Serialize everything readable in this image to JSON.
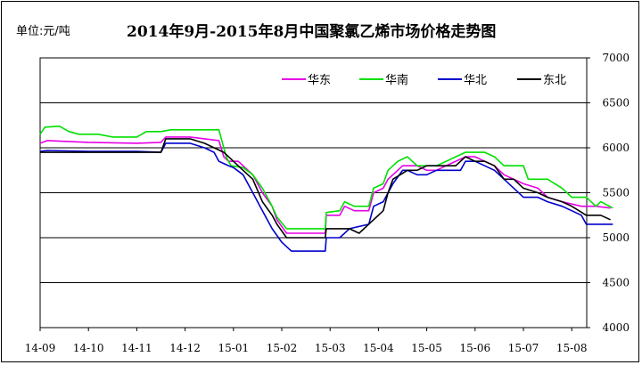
{
  "header": {
    "unit_label": "单位:元/吨",
    "title": "2014年9月-2015年8月中国聚氯乙烯市场价格走势图"
  },
  "chart_data": {
    "type": "line",
    "title": "2014年9月-2015年8月中国聚氯乙烯市场价格走势图",
    "xlabel": "",
    "ylabel": "单位:元/吨",
    "ylim": [
      4000,
      7000
    ],
    "y_ticks": [
      "4000",
      "4500",
      "5000",
      "5500",
      "6000",
      "6500",
      "7000"
    ],
    "x_ticks": [
      "14-09",
      "14-10",
      "14-11",
      "14-12",
      "15-01",
      "15-02",
      "15-03",
      "15-04",
      "15-05",
      "15-06",
      "15-07",
      "15-08"
    ],
    "grid": "horizontal",
    "legend_position": "top-right",
    "series": [
      {
        "name": "华东",
        "color": "#e600e6",
        "points": [
          [
            0,
            6050
          ],
          [
            0.15,
            6080
          ],
          [
            1.0,
            6060
          ],
          [
            2.0,
            6050
          ],
          [
            2.5,
            6060
          ],
          [
            2.6,
            6120
          ],
          [
            3.1,
            6120
          ],
          [
            3.4,
            6100
          ],
          [
            3.7,
            6080
          ],
          [
            3.8,
            5900
          ],
          [
            3.9,
            5850
          ],
          [
            4.1,
            5850
          ],
          [
            4.2,
            5800
          ],
          [
            4.4,
            5700
          ],
          [
            4.6,
            5500
          ],
          [
            4.8,
            5350
          ],
          [
            4.9,
            5200
          ],
          [
            5.1,
            5050
          ],
          [
            5.6,
            5050
          ],
          [
            5.9,
            5050
          ],
          [
            5.92,
            5250
          ],
          [
            6.2,
            5250
          ],
          [
            6.3,
            5350
          ],
          [
            6.5,
            5300
          ],
          [
            6.8,
            5300
          ],
          [
            6.9,
            5500
          ],
          [
            7.1,
            5550
          ],
          [
            7.2,
            5650
          ],
          [
            7.4,
            5750
          ],
          [
            7.5,
            5800
          ],
          [
            7.8,
            5800
          ],
          [
            8.0,
            5750
          ],
          [
            8.2,
            5750
          ],
          [
            8.4,
            5800
          ],
          [
            8.6,
            5850
          ],
          [
            8.8,
            5900
          ],
          [
            9.0,
            5900
          ],
          [
            9.2,
            5850
          ],
          [
            9.4,
            5800
          ],
          [
            9.6,
            5700
          ],
          [
            9.8,
            5650
          ],
          [
            10.0,
            5600
          ],
          [
            10.3,
            5550
          ],
          [
            10.5,
            5450
          ],
          [
            10.8,
            5400
          ],
          [
            11.2,
            5350
          ],
          [
            11.5,
            5350
          ],
          [
            11.8,
            5330
          ]
        ]
      },
      {
        "name": "华南",
        "color": "#00e000",
        "points": [
          [
            0,
            6150
          ],
          [
            0.1,
            6230
          ],
          [
            0.4,
            6240
          ],
          [
            0.6,
            6180
          ],
          [
            0.8,
            6150
          ],
          [
            1.2,
            6150
          ],
          [
            1.5,
            6120
          ],
          [
            2.0,
            6120
          ],
          [
            2.2,
            6180
          ],
          [
            2.5,
            6180
          ],
          [
            2.7,
            6200
          ],
          [
            3.4,
            6200
          ],
          [
            3.7,
            6200
          ],
          [
            3.85,
            5900
          ],
          [
            3.95,
            5800
          ],
          [
            4.2,
            5780
          ],
          [
            4.4,
            5700
          ],
          [
            4.6,
            5550
          ],
          [
            4.8,
            5350
          ],
          [
            4.9,
            5230
          ],
          [
            5.1,
            5100
          ],
          [
            5.6,
            5100
          ],
          [
            5.9,
            5100
          ],
          [
            5.92,
            5280
          ],
          [
            6.2,
            5300
          ],
          [
            6.3,
            5400
          ],
          [
            6.5,
            5350
          ],
          [
            6.8,
            5350
          ],
          [
            6.9,
            5550
          ],
          [
            7.1,
            5600
          ],
          [
            7.2,
            5750
          ],
          [
            7.4,
            5850
          ],
          [
            7.6,
            5900
          ],
          [
            7.8,
            5800
          ],
          [
            8.0,
            5800
          ],
          [
            8.2,
            5800
          ],
          [
            8.4,
            5850
          ],
          [
            8.6,
            5900
          ],
          [
            8.8,
            5950
          ],
          [
            9.2,
            5950
          ],
          [
            9.4,
            5900
          ],
          [
            9.6,
            5800
          ],
          [
            9.8,
            5800
          ],
          [
            10.0,
            5800
          ],
          [
            10.1,
            5650
          ],
          [
            10.5,
            5650
          ],
          [
            10.8,
            5550
          ],
          [
            11.0,
            5450
          ],
          [
            11.3,
            5450
          ],
          [
            11.5,
            5350
          ],
          [
            11.6,
            5400
          ],
          [
            11.85,
            5330
          ]
        ]
      },
      {
        "name": "华北",
        "color": "#0000cc",
        "points": [
          [
            0,
            5960
          ],
          [
            0.15,
            5970
          ],
          [
            1.0,
            5960
          ],
          [
            2.0,
            5960
          ],
          [
            2.5,
            5950
          ],
          [
            2.6,
            6050
          ],
          [
            3.1,
            6050
          ],
          [
            3.4,
            6000
          ],
          [
            3.6,
            5950
          ],
          [
            3.7,
            5850
          ],
          [
            3.9,
            5800
          ],
          [
            4.0,
            5780
          ],
          [
            4.2,
            5700
          ],
          [
            4.4,
            5500
          ],
          [
            4.6,
            5300
          ],
          [
            4.8,
            5100
          ],
          [
            5.0,
            4950
          ],
          [
            5.2,
            4850
          ],
          [
            5.5,
            4850
          ],
          [
            5.8,
            4850
          ],
          [
            5.9,
            4850
          ],
          [
            5.92,
            5000
          ],
          [
            6.2,
            5000
          ],
          [
            6.4,
            5100
          ],
          [
            6.8,
            5150
          ],
          [
            6.9,
            5350
          ],
          [
            7.1,
            5400
          ],
          [
            7.3,
            5600
          ],
          [
            7.5,
            5750
          ],
          [
            7.6,
            5750
          ],
          [
            7.8,
            5700
          ],
          [
            8.0,
            5700
          ],
          [
            8.2,
            5750
          ],
          [
            8.5,
            5750
          ],
          [
            8.7,
            5750
          ],
          [
            8.8,
            5850
          ],
          [
            9.0,
            5850
          ],
          [
            9.2,
            5800
          ],
          [
            9.4,
            5750
          ],
          [
            9.6,
            5650
          ],
          [
            9.8,
            5550
          ],
          [
            10.0,
            5450
          ],
          [
            10.3,
            5450
          ],
          [
            10.5,
            5400
          ],
          [
            10.8,
            5350
          ],
          [
            11.0,
            5300
          ],
          [
            11.2,
            5250
          ],
          [
            11.3,
            5150
          ],
          [
            11.6,
            5150
          ],
          [
            11.85,
            5150
          ]
        ]
      },
      {
        "name": "东北",
        "color": "#000000",
        "points": [
          [
            0,
            5950
          ],
          [
            0.15,
            5950
          ],
          [
            1.0,
            5950
          ],
          [
            2.0,
            5950
          ],
          [
            2.5,
            5950
          ],
          [
            2.6,
            6100
          ],
          [
            3.1,
            6100
          ],
          [
            3.4,
            6050
          ],
          [
            3.6,
            6000
          ],
          [
            3.8,
            5950
          ],
          [
            3.9,
            5900
          ],
          [
            4.0,
            5850
          ],
          [
            4.2,
            5750
          ],
          [
            4.4,
            5650
          ],
          [
            4.6,
            5400
          ],
          [
            4.8,
            5250
          ],
          [
            4.9,
            5150
          ],
          [
            5.1,
            5000
          ],
          [
            5.6,
            5000
          ],
          [
            5.9,
            5000
          ],
          [
            5.92,
            5100
          ],
          [
            6.4,
            5100
          ],
          [
            6.6,
            5050
          ],
          [
            6.9,
            5200
          ],
          [
            7.1,
            5300
          ],
          [
            7.2,
            5500
          ],
          [
            7.3,
            5650
          ],
          [
            7.6,
            5750
          ],
          [
            7.8,
            5750
          ],
          [
            8.0,
            5800
          ],
          [
            8.4,
            5800
          ],
          [
            8.6,
            5800
          ],
          [
            8.8,
            5900
          ],
          [
            9.0,
            5850
          ],
          [
            9.2,
            5850
          ],
          [
            9.4,
            5800
          ],
          [
            9.6,
            5650
          ],
          [
            9.8,
            5650
          ],
          [
            10.0,
            5550
          ],
          [
            10.3,
            5500
          ],
          [
            10.5,
            5450
          ],
          [
            10.8,
            5400
          ],
          [
            11.0,
            5350
          ],
          [
            11.3,
            5250
          ],
          [
            11.6,
            5250
          ],
          [
            11.8,
            5200
          ]
        ]
      }
    ]
  }
}
